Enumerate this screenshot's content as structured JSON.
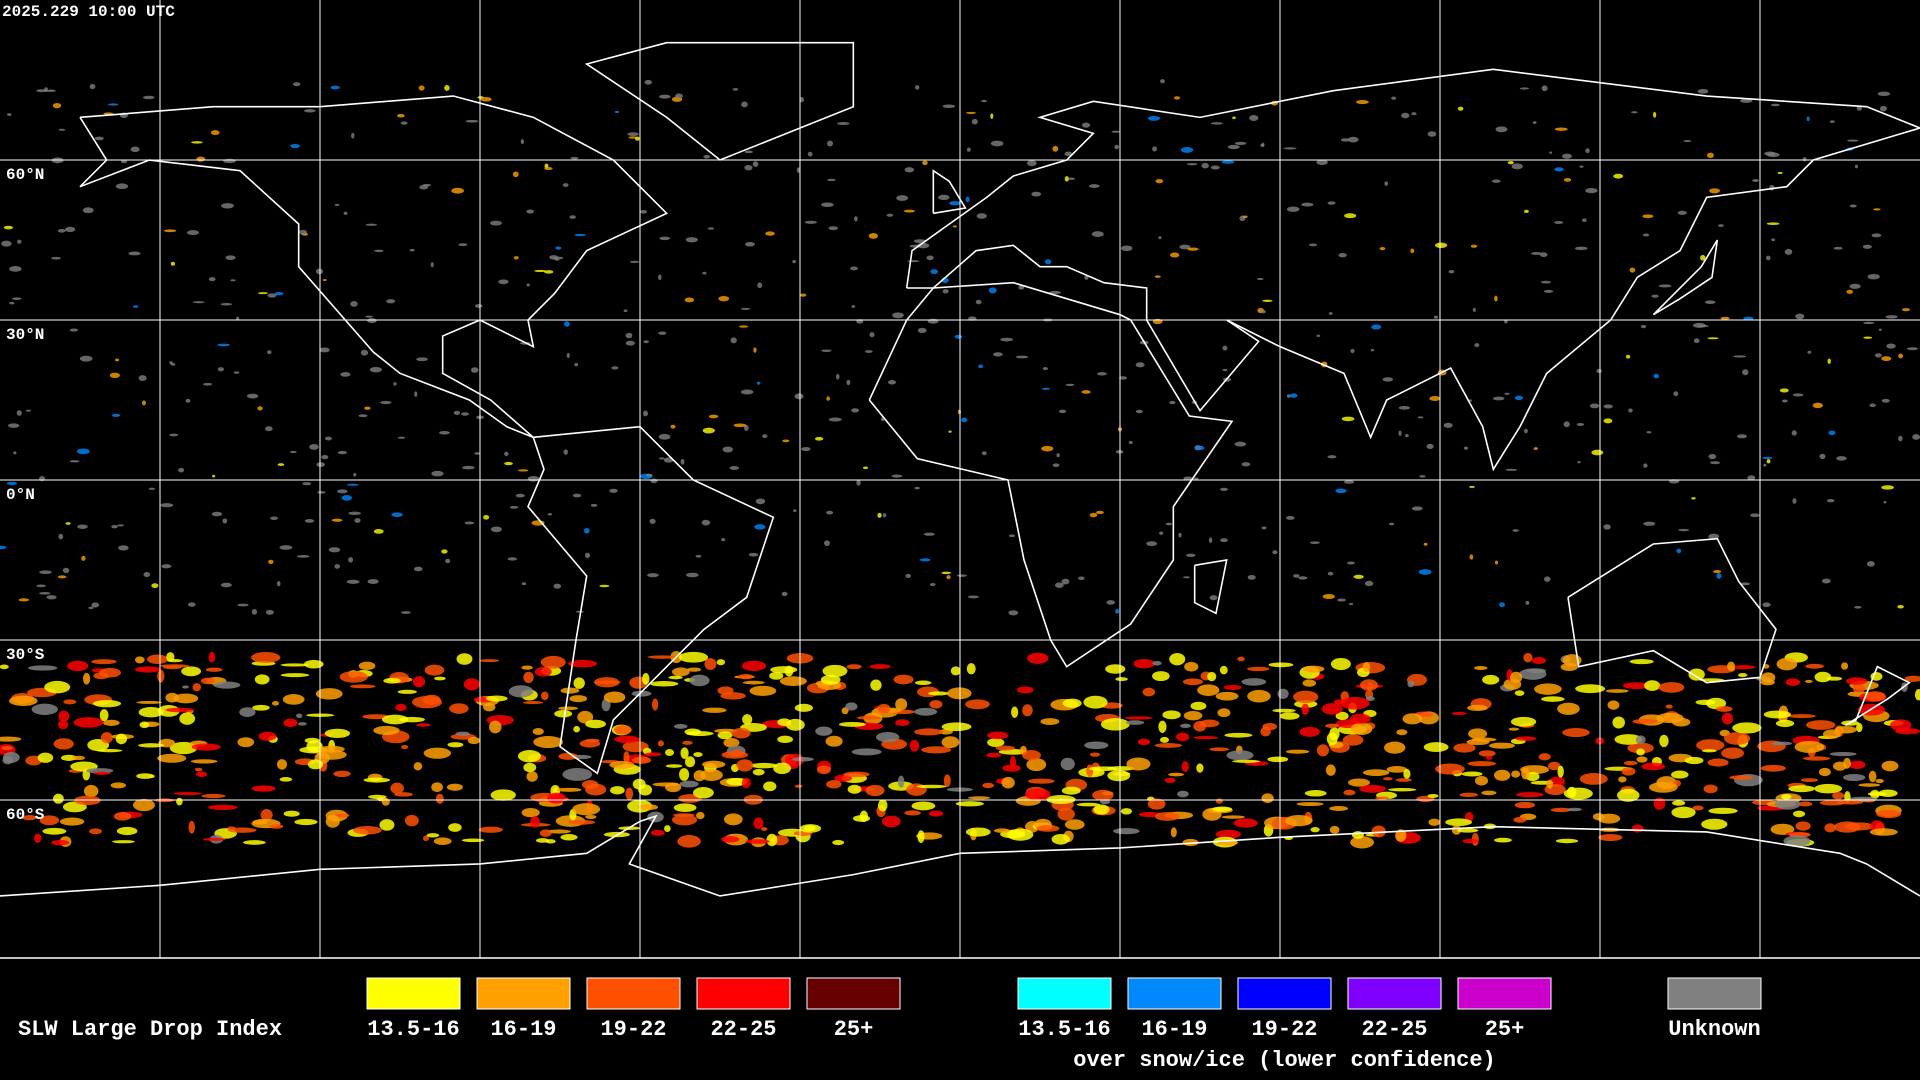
{
  "header": {
    "timestamp": "2025.229 10:00 UTC"
  },
  "map": {
    "latitude_labels": [
      "60°N",
      "30°N",
      "0°N",
      "30°S",
      "60°S"
    ]
  },
  "legend": {
    "title": "SLW Large Drop Index",
    "groups": [
      {
        "items": [
          {
            "label": "13.5-16",
            "color": "#ffff00"
          },
          {
            "label": "16-19",
            "color": "#ffa000"
          },
          {
            "label": "19-22",
            "color": "#ff5000"
          },
          {
            "label": "22-25",
            "color": "#ff0000"
          },
          {
            "label": "25+",
            "color": "#660000"
          }
        ]
      },
      {
        "items": [
          {
            "label": "13.5-16",
            "color": "#00ffff"
          },
          {
            "label": "16-19",
            "color": "#0088ff"
          },
          {
            "label": "19-22",
            "color": "#0000ff"
          },
          {
            "label": "22-25",
            "color": "#8000ff"
          },
          {
            "label": "25+",
            "color": "#cc00cc"
          }
        ],
        "caption": "over snow/ice (lower confidence)"
      },
      {
        "items": [
          {
            "label": "Unknown",
            "color": "#808080"
          }
        ]
      }
    ]
  }
}
